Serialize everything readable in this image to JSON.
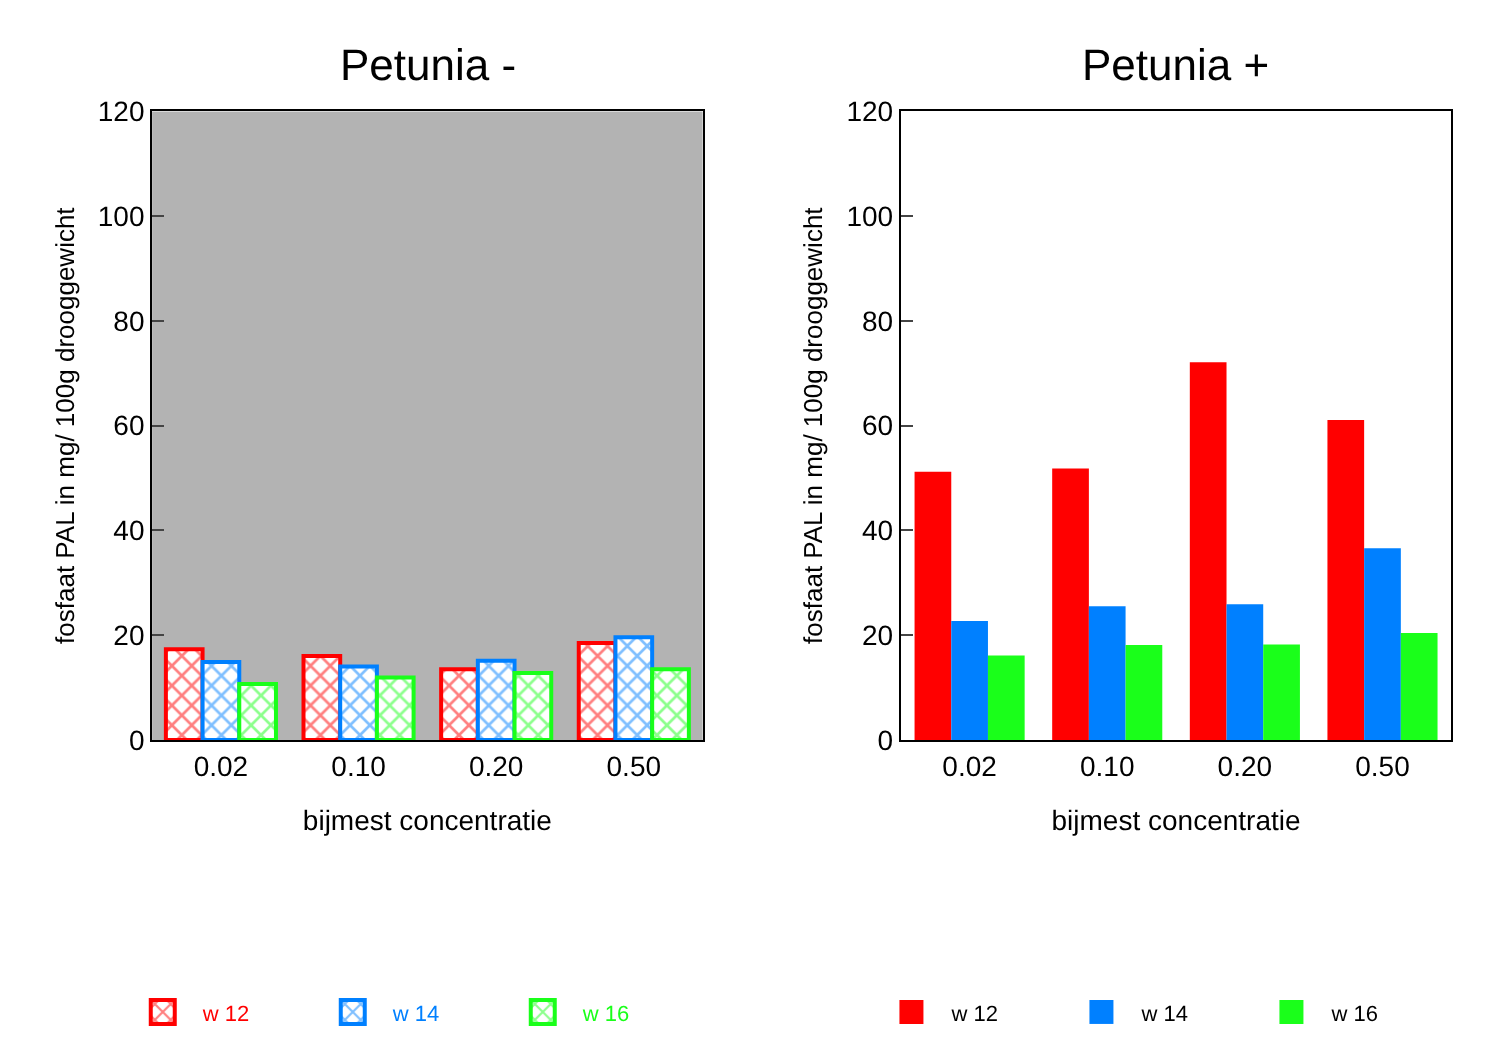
{
  "chart_data": [
    {
      "type": "bar",
      "title": "Petunia -",
      "xlabel": "bijmest concentratie",
      "ylabel": "fosfaat PAL in mg/ 100g drooggewicht",
      "categories": [
        "0.02",
        "0.10",
        "0.20",
        "0.50"
      ],
      "series": [
        {
          "name": "w 12",
          "color": "#ff0000",
          "values": [
            17.3,
            16.0,
            13.5,
            18.5
          ]
        },
        {
          "name": "w 14",
          "color": "#0080ff",
          "values": [
            14.9,
            14.0,
            15.1,
            19.6
          ]
        },
        {
          "name": "w 16",
          "color": "#1aff1a",
          "values": [
            10.7,
            11.9,
            12.8,
            13.5
          ]
        }
      ],
      "ylim": [
        0,
        120
      ],
      "yticks": [
        0,
        20,
        40,
        60,
        80,
        100,
        120
      ],
      "grid": false,
      "legend": "bottom"
    },
    {
      "type": "bar",
      "title": "Petunia +",
      "xlabel": "bijmest concentratie",
      "ylabel": "fosfaat PAL in mg/ 100g drooggewicht",
      "categories": [
        "0.02",
        "0.10",
        "0.20",
        "0.50"
      ],
      "series": [
        {
          "name": "w 12",
          "color": "#ff0000",
          "values": [
            51.2,
            51.8,
            72.1,
            61.1
          ]
        },
        {
          "name": "w 14",
          "color": "#0080ff",
          "values": [
            22.7,
            25.5,
            25.9,
            36.6
          ]
        },
        {
          "name": "w 16",
          "color": "#1aff1a",
          "values": [
            16.1,
            18.1,
            18.2,
            20.4
          ]
        }
      ],
      "ylim": [
        0,
        120
      ],
      "yticks": [
        0,
        20,
        40,
        60,
        80,
        100,
        120
      ],
      "grid": false,
      "legend": "bottom"
    }
  ]
}
